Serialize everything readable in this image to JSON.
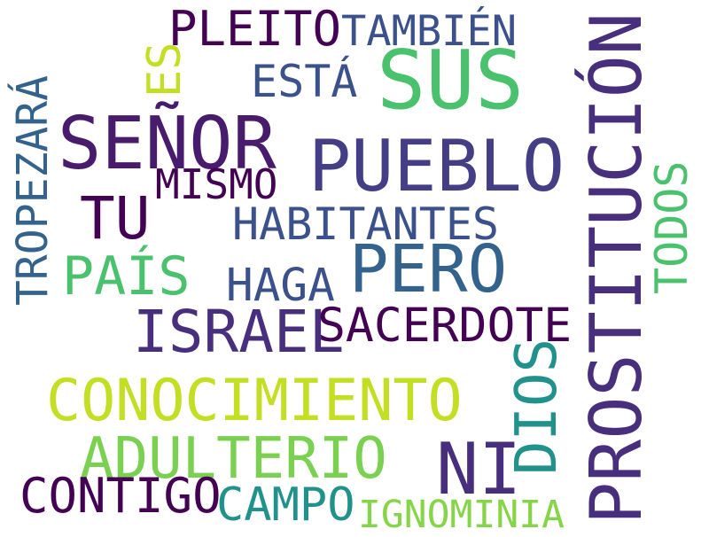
{
  "words": {
    "pleito": {
      "text": "PLEITO",
      "color": "#440154"
    },
    "tambien": {
      "text": "TAMBIÉN",
      "color": "#3b518b"
    },
    "es": {
      "text": "ES",
      "color": "#c2df23"
    },
    "esta": {
      "text": "ESTÁ",
      "color": "#3b518b"
    },
    "sus": {
      "text": "SUS",
      "color": "#4ac16d"
    },
    "prostitucion": {
      "text": "PROSTITUCIÓN",
      "color": "#472f7d"
    },
    "tropezara": {
      "text": "TROPEZARÁ",
      "color": "#33638d"
    },
    "senor": {
      "text": "SEÑOR",
      "color": "#481b6d"
    },
    "pueblo": {
      "text": "PUEBLO",
      "color": "#433e85"
    },
    "mismo": {
      "text": "MISMO",
      "color": "#440154"
    },
    "tu": {
      "text": "TU",
      "color": "#440154"
    },
    "habitantes": {
      "text": "HABITANTES",
      "color": "#3b518b"
    },
    "todos": {
      "text": "TODOS",
      "color": "#4ac16d"
    },
    "pais": {
      "text": "PAÍS",
      "color": "#4ac16d"
    },
    "pero": {
      "text": "PERO",
      "color": "#33638d"
    },
    "haga": {
      "text": "HAGA",
      "color": "#3b518b"
    },
    "israel": {
      "text": "ISRAEL",
      "color": "#472f7d"
    },
    "sacerdote": {
      "text": "SACERDOTE",
      "color": "#440154"
    },
    "dios": {
      "text": "DIOS",
      "color": "#21918c"
    },
    "conocimiento": {
      "text": "CONOCIMIENTO",
      "color": "#c2df23"
    },
    "adulterio": {
      "text": "ADULTERIO",
      "color": "#7ad151"
    },
    "ni": {
      "text": "NI",
      "color": "#472f7d"
    },
    "contigo": {
      "text": "CONTIGO",
      "color": "#440154"
    },
    "campo": {
      "text": "CAMPO",
      "color": "#21918c"
    },
    "ignominia": {
      "text": "IGNOMINIA",
      "color": "#86d549"
    }
  }
}
